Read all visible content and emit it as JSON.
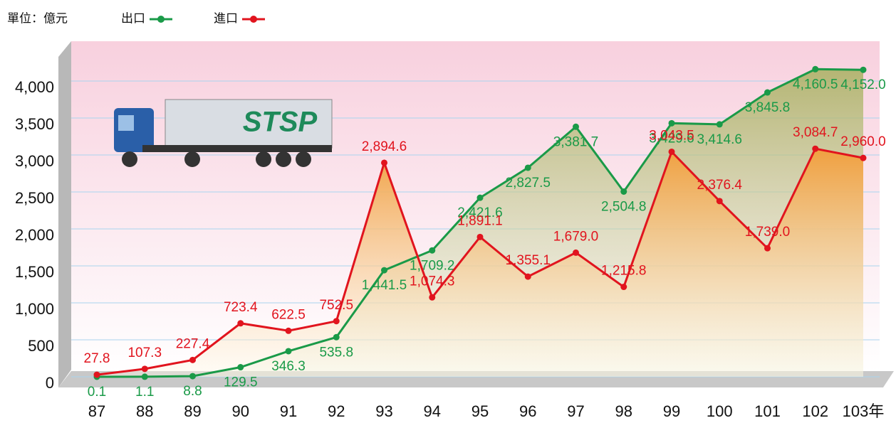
{
  "chart_data": {
    "type": "line",
    "unit_label": "單位：億元",
    "annotations": [
      "STSP"
    ],
    "categories": [
      "87",
      "88",
      "89",
      "90",
      "91",
      "92",
      "93",
      "94",
      "95",
      "96",
      "97",
      "98",
      "99",
      "100",
      "101",
      "102",
      "103年"
    ],
    "series": [
      {
        "name": "出口",
        "color": "#1a9a48",
        "values": [
          0.1,
          1.1,
          8.8,
          129.5,
          346.3,
          535.8,
          1441.5,
          1709.2,
          2421.6,
          2827.5,
          3381.7,
          2504.8,
          3429.6,
          3414.6,
          3845.8,
          4160.5,
          4152.0
        ],
        "value_labels": [
          "0.1",
          "1.1",
          "8.8",
          "129.5",
          "346.3",
          "535.8",
          "1,441.5",
          "1,709.2",
          "2,421.6",
          "2,827.5",
          "3,381.7",
          "2,504.8",
          "3,429.6",
          "3,414.6",
          "3,845.8",
          "4,160.5",
          "4,152.0"
        ]
      },
      {
        "name": "進口",
        "color": "#e1141e",
        "values": [
          27.8,
          107.3,
          227.4,
          723.4,
          622.5,
          752.5,
          2894.6,
          1074.3,
          1891.1,
          1355.1,
          1679.0,
          1215.8,
          3043.5,
          2376.4,
          1739.0,
          3084.7,
          2960.0
        ],
        "value_labels": [
          "27.8",
          "107.3",
          "227.4",
          "723.4",
          "622.5",
          "752.5",
          "2,894.6",
          "1,074.3",
          "1,891.1",
          "1,355.1",
          "1,679.0",
          "1,215.8",
          "3,043.5",
          "2,376.4",
          "1,739.0",
          "3,084.7",
          "2,960.0"
        ]
      }
    ],
    "ylim": [
      0,
      4500
    ],
    "yticks": [
      0,
      500,
      {
        "value": 1000,
        "label": "1,000"
      },
      {
        "value": 1500,
        "label": "1,500"
      },
      {
        "value": 2000,
        "label": "2,000"
      },
      {
        "value": 2500,
        "label": "2,500"
      },
      {
        "value": 3000,
        "label": "3,000"
      },
      {
        "value": 3500,
        "label": "3,500"
      },
      {
        "value": 4000,
        "label": "4,000"
      }
    ],
    "grid": true
  }
}
